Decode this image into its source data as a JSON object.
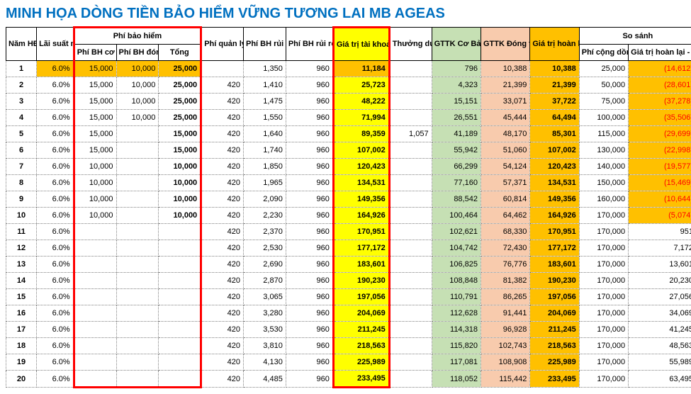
{
  "title": "MINH HỌA DÒNG TIỀN BẢO HIỂM VỮNG TƯƠNG LAI MB AGEAS",
  "headers": {
    "nam": "Năm HĐ",
    "lai": "Lãi suất minh họa",
    "phibh_group": "Phí bảo hiểm",
    "phibh_coban": "Phí BH cơ bản",
    "phibh_dongthem": "Phí BH đóng thêm",
    "tong": "Tổng",
    "quanly": "Phí quản lý HĐ",
    "ruiro_sp": "Phí BH rủi ro SP chính",
    "ruiro_ql": "Phí BH rủi ro QLBH bổ trợ",
    "gttk_hd": "Giá trị tài khoản HĐ",
    "thuong": "Thưởng duy trì HĐ",
    "gttk_co": "GTTK Cơ Bản",
    "gttk_dong": "GTTK Đóng thêm",
    "giatri_hoan": "Giá trị hoàn lại",
    "sosanh": "So sánh",
    "phi_cong": "Phí cộng dồn",
    "giatri_hoan_phi": "Giá trị hoàn lại - Phí cộng dồn"
  },
  "rows": [
    {
      "y": 1,
      "r": "6.0%",
      "cb": "15,000",
      "dt": "10,000",
      "t": "25,000",
      "ql": "",
      "sp": "1,350",
      "bt": "960",
      "gttk": "11,184",
      "th": "",
      "co": "796",
      "dong": "10,388",
      "hoan": "10,388",
      "pc": "25,000",
      "ss": "(14,612)",
      "hl": [
        1,
        1,
        1,
        1,
        0,
        0,
        0,
        1,
        0,
        0,
        1,
        1,
        0,
        1
      ]
    },
    {
      "y": 2,
      "r": "6.0%",
      "cb": "15,000",
      "dt": "10,000",
      "t": "25,000",
      "ql": "420",
      "sp": "1,410",
      "bt": "960",
      "gttk": "25,723",
      "th": "",
      "co": "4,323",
      "dong": "21,399",
      "hoan": "21,399",
      "pc": "50,000",
      "ss": "(28,601)",
      "hl": [
        0,
        0,
        0,
        0,
        0,
        0,
        0,
        0,
        0,
        0,
        0,
        0,
        0,
        1
      ]
    },
    {
      "y": 3,
      "r": "6.0%",
      "cb": "15,000",
      "dt": "10,000",
      "t": "25,000",
      "ql": "420",
      "sp": "1,475",
      "bt": "960",
      "gttk": "48,222",
      "th": "",
      "co": "15,151",
      "dong": "33,071",
      "hoan": "37,722",
      "pc": "75,000",
      "ss": "(37,278)",
      "hl": [
        0,
        0,
        0,
        0,
        0,
        0,
        0,
        0,
        0,
        0,
        0,
        0,
        0,
        1
      ]
    },
    {
      "y": 4,
      "r": "6.0%",
      "cb": "15,000",
      "dt": "10,000",
      "t": "25,000",
      "ql": "420",
      "sp": "1,550",
      "bt": "960",
      "gttk": "71,994",
      "th": "",
      "co": "26,551",
      "dong": "45,444",
      "hoan": "64,494",
      "pc": "100,000",
      "ss": "(35,506)",
      "hl": [
        0,
        0,
        0,
        0,
        0,
        0,
        0,
        0,
        0,
        0,
        0,
        0,
        0,
        1
      ]
    },
    {
      "y": 5,
      "r": "6.0%",
      "cb": "15,000",
      "dt": "",
      "t": "15,000",
      "ql": "420",
      "sp": "1,640",
      "bt": "960",
      "gttk": "89,359",
      "th": "1,057",
      "co": "41,189",
      "dong": "48,170",
      "hoan": "85,301",
      "pc": "115,000",
      "ss": "(29,699)",
      "hl": [
        0,
        0,
        0,
        0,
        0,
        0,
        0,
        0,
        0,
        0,
        0,
        0,
        0,
        1
      ]
    },
    {
      "y": 6,
      "r": "6.0%",
      "cb": "15,000",
      "dt": "",
      "t": "15,000",
      "ql": "420",
      "sp": "1,740",
      "bt": "960",
      "gttk": "107,002",
      "th": "",
      "co": "55,942",
      "dong": "51,060",
      "hoan": "107,002",
      "pc": "130,000",
      "ss": "(22,998)",
      "hl": [
        0,
        0,
        0,
        0,
        0,
        0,
        0,
        0,
        0,
        0,
        0,
        0,
        0,
        1
      ]
    },
    {
      "y": 7,
      "r": "6.0%",
      "cb": "10,000",
      "dt": "",
      "t": "10,000",
      "ql": "420",
      "sp": "1,850",
      "bt": "960",
      "gttk": "120,423",
      "th": "",
      "co": "66,299",
      "dong": "54,124",
      "hoan": "120,423",
      "pc": "140,000",
      "ss": "(19,577)",
      "hl": [
        0,
        0,
        0,
        0,
        0,
        0,
        0,
        0,
        0,
        0,
        0,
        0,
        0,
        1
      ]
    },
    {
      "y": 8,
      "r": "6.0%",
      "cb": "10,000",
      "dt": "",
      "t": "10,000",
      "ql": "420",
      "sp": "1,965",
      "bt": "960",
      "gttk": "134,531",
      "th": "",
      "co": "77,160",
      "dong": "57,371",
      "hoan": "134,531",
      "pc": "150,000",
      "ss": "(15,469)",
      "hl": [
        0,
        0,
        0,
        0,
        0,
        0,
        0,
        0,
        0,
        0,
        0,
        0,
        0,
        1
      ]
    },
    {
      "y": 9,
      "r": "6.0%",
      "cb": "10,000",
      "dt": "",
      "t": "10,000",
      "ql": "420",
      "sp": "2,090",
      "bt": "960",
      "gttk": "149,356",
      "th": "",
      "co": "88,542",
      "dong": "60,814",
      "hoan": "149,356",
      "pc": "160,000",
      "ss": "(10,644)",
      "hl": [
        0,
        0,
        0,
        0,
        0,
        0,
        0,
        0,
        0,
        0,
        0,
        0,
        0,
        1
      ]
    },
    {
      "y": 10,
      "r": "6.0%",
      "cb": "10,000",
      "dt": "",
      "t": "10,000",
      "ql": "420",
      "sp": "2,230",
      "bt": "960",
      "gttk": "164,926",
      "th": "",
      "co": "100,464",
      "dong": "64,462",
      "hoan": "164,926",
      "pc": "170,000",
      "ss": "(5,074)",
      "hl": [
        0,
        0,
        0,
        0,
        0,
        0,
        0,
        0,
        0,
        0,
        0,
        0,
        0,
        1
      ]
    },
    {
      "y": 11,
      "r": "6.0%",
      "cb": "",
      "dt": "",
      "t": "",
      "ql": "420",
      "sp": "2,370",
      "bt": "960",
      "gttk": "170,951",
      "th": "",
      "co": "102,621",
      "dong": "68,330",
      "hoan": "170,951",
      "pc": "170,000",
      "ss": "951",
      "hl": [
        0,
        0,
        0,
        0,
        0,
        0,
        0,
        0,
        0,
        0,
        0,
        0,
        0,
        0
      ]
    },
    {
      "y": 12,
      "r": "6.0%",
      "cb": "",
      "dt": "",
      "t": "",
      "ql": "420",
      "sp": "2,530",
      "bt": "960",
      "gttk": "177,172",
      "th": "",
      "co": "104,742",
      "dong": "72,430",
      "hoan": "177,172",
      "pc": "170,000",
      "ss": "7,172",
      "hl": [
        0,
        0,
        0,
        0,
        0,
        0,
        0,
        0,
        0,
        0,
        0,
        0,
        0,
        0
      ]
    },
    {
      "y": 13,
      "r": "6.0%",
      "cb": "",
      "dt": "",
      "t": "",
      "ql": "420",
      "sp": "2,690",
      "bt": "960",
      "gttk": "183,601",
      "th": "",
      "co": "106,825",
      "dong": "76,776",
      "hoan": "183,601",
      "pc": "170,000",
      "ss": "13,601",
      "hl": [
        0,
        0,
        0,
        0,
        0,
        0,
        0,
        0,
        0,
        0,
        0,
        0,
        0,
        0
      ]
    },
    {
      "y": 14,
      "r": "6.0%",
      "cb": "",
      "dt": "",
      "t": "",
      "ql": "420",
      "sp": "2,870",
      "bt": "960",
      "gttk": "190,230",
      "th": "",
      "co": "108,848",
      "dong": "81,382",
      "hoan": "190,230",
      "pc": "170,000",
      "ss": "20,230",
      "hl": [
        0,
        0,
        0,
        0,
        0,
        0,
        0,
        0,
        0,
        0,
        0,
        0,
        0,
        0
      ]
    },
    {
      "y": 15,
      "r": "6.0%",
      "cb": "",
      "dt": "",
      "t": "",
      "ql": "420",
      "sp": "3,065",
      "bt": "960",
      "gttk": "197,056",
      "th": "",
      "co": "110,791",
      "dong": "86,265",
      "hoan": "197,056",
      "pc": "170,000",
      "ss": "27,056",
      "hl": [
        0,
        0,
        0,
        0,
        0,
        0,
        0,
        0,
        0,
        0,
        0,
        0,
        0,
        0
      ]
    },
    {
      "y": 16,
      "r": "6.0%",
      "cb": "",
      "dt": "",
      "t": "",
      "ql": "420",
      "sp": "3,280",
      "bt": "960",
      "gttk": "204,069",
      "th": "",
      "co": "112,628",
      "dong": "91,441",
      "hoan": "204,069",
      "pc": "170,000",
      "ss": "34,069",
      "hl": [
        0,
        0,
        0,
        0,
        0,
        0,
        0,
        0,
        0,
        0,
        0,
        0,
        0,
        0
      ]
    },
    {
      "y": 17,
      "r": "6.0%",
      "cb": "",
      "dt": "",
      "t": "",
      "ql": "420",
      "sp": "3,530",
      "bt": "960",
      "gttk": "211,245",
      "th": "",
      "co": "114,318",
      "dong": "96,928",
      "hoan": "211,245",
      "pc": "170,000",
      "ss": "41,245",
      "hl": [
        0,
        0,
        0,
        0,
        0,
        0,
        0,
        0,
        0,
        0,
        0,
        0,
        0,
        0
      ]
    },
    {
      "y": 18,
      "r": "6.0%",
      "cb": "",
      "dt": "",
      "t": "",
      "ql": "420",
      "sp": "3,810",
      "bt": "960",
      "gttk": "218,563",
      "th": "",
      "co": "115,820",
      "dong": "102,743",
      "hoan": "218,563",
      "pc": "170,000",
      "ss": "48,563",
      "hl": [
        0,
        0,
        0,
        0,
        0,
        0,
        0,
        0,
        0,
        0,
        0,
        0,
        0,
        0
      ]
    },
    {
      "y": 19,
      "r": "6.0%",
      "cb": "",
      "dt": "",
      "t": "",
      "ql": "420",
      "sp": "4,130",
      "bt": "960",
      "gttk": "225,989",
      "th": "",
      "co": "117,081",
      "dong": "108,908",
      "hoan": "225,989",
      "pc": "170,000",
      "ss": "55,989",
      "hl": [
        0,
        0,
        0,
        0,
        0,
        0,
        0,
        0,
        0,
        0,
        0,
        0,
        0,
        0
      ]
    },
    {
      "y": 20,
      "r": "6.0%",
      "cb": "",
      "dt": "",
      "t": "",
      "ql": "420",
      "sp": "4,485",
      "bt": "960",
      "gttk": "233,495",
      "th": "",
      "co": "118,052",
      "dong": "115,442",
      "hoan": "233,495",
      "pc": "170,000",
      "ss": "63,495",
      "hl": [
        0,
        0,
        0,
        0,
        0,
        0,
        0,
        0,
        0,
        0,
        0,
        0,
        0,
        0
      ]
    }
  ],
  "colColors": [
    "",
    "",
    "",
    "",
    "",
    "",
    "",
    "",
    "bg-yellow",
    "",
    "bg-green",
    "bg-tan",
    "bg-orange",
    "",
    ""
  ]
}
